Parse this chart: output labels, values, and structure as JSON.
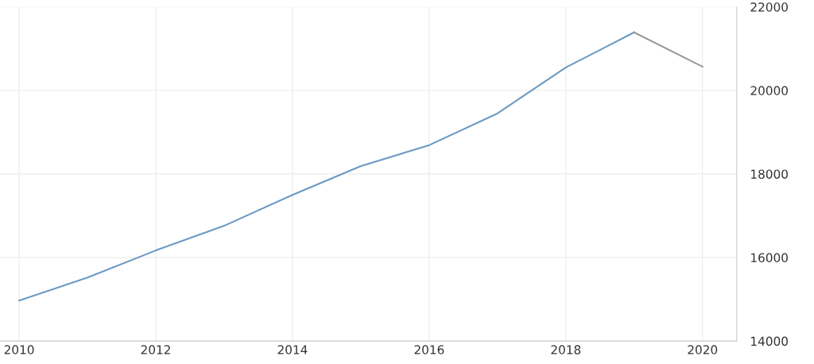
{
  "chart_data": {
    "type": "line",
    "xlim": [
      2009.72,
      2020.5
    ],
    "xticks": [
      2010,
      2012,
      2014,
      2016,
      2018,
      2020
    ],
    "ylim": [
      14000,
      22000
    ],
    "yticks": [
      14000,
      16000,
      18000,
      20000,
      22000
    ],
    "grid": true,
    "legend": false,
    "series": [
      {
        "color": "#6b9ac4",
        "x": [
          2010,
          2011,
          2012,
          2013,
          2014,
          2015,
          2016,
          2017,
          2018,
          2019
        ],
        "values": [
          14970,
          15520,
          16170,
          16760,
          17500,
          18190,
          18690,
          19450,
          20550,
          21390
        ]
      },
      {
        "color": "#999999",
        "x": [
          2019,
          2020
        ],
        "values": [
          21390,
          20570
        ]
      }
    ]
  }
}
